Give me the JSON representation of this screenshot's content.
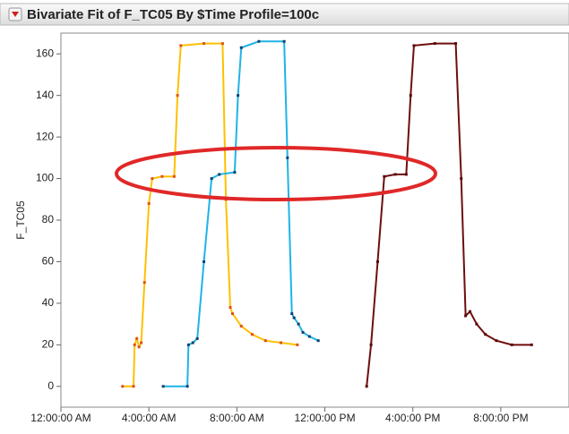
{
  "chart_data": {
    "type": "line",
    "title": "Bivariate Fit of F_TC05 By $Time Profile=100c",
    "y_label": "F_TC05",
    "xlim": [
      0,
      23.1
    ],
    "ylim": [
      -10,
      170
    ],
    "xticks": [
      {
        "value": 0,
        "label": "12:00:00 AM"
      },
      {
        "value": 4,
        "label": "4:00:00 AM"
      },
      {
        "value": 8,
        "label": "8:00:00 AM"
      },
      {
        "value": 12,
        "label": "12:00:00 PM"
      },
      {
        "value": 16,
        "label": "4:00:00 PM"
      },
      {
        "value": 20,
        "label": "8:00:00 PM"
      }
    ],
    "yticks": [
      0,
      20,
      40,
      60,
      80,
      100,
      120,
      140,
      160
    ],
    "series": [
      {
        "color": "#ffc000",
        "marker_color": "#e0501a",
        "x": [
          2.8,
          3.3,
          3.35,
          3.45,
          3.55,
          3.65,
          3.8,
          4.0,
          4.15,
          4.6,
          5.15,
          5.3,
          5.45,
          6.5,
          7.35,
          7.5,
          7.7,
          7.8,
          8.2,
          8.7,
          9.3,
          10.0,
          10.75
        ],
        "values": [
          0,
          0,
          20,
          23,
          19,
          21,
          50,
          88,
          100,
          101,
          101,
          140,
          164,
          165,
          165,
          90,
          38,
          35,
          29,
          25,
          22,
          21,
          20
        ]
      },
      {
        "color": "#1eb4e6",
        "marker_color": "#10406e",
        "x": [
          4.65,
          5.75,
          5.8,
          6.0,
          6.2,
          6.5,
          6.85,
          7.2,
          7.9,
          8.05,
          8.2,
          9.0,
          10.15,
          10.3,
          10.5,
          10.6,
          10.8,
          11.0,
          11.3,
          11.7
        ],
        "values": [
          0,
          0,
          20,
          21,
          23,
          60,
          100,
          102,
          103,
          140,
          163,
          166,
          166,
          110,
          35,
          33,
          30,
          26,
          24,
          22
        ]
      },
      {
        "color": "#6e0e0e",
        "marker_color": "#5a0808",
        "x": [
          13.9,
          14.1,
          14.4,
          14.7,
          15.2,
          15.7,
          15.9,
          16.05,
          17.0,
          17.95,
          18.2,
          18.4,
          18.6,
          18.9,
          19.3,
          19.8,
          20.5,
          21.4
        ],
        "values": [
          0,
          20,
          60,
          101,
          102,
          102,
          140,
          164,
          165,
          165,
          100,
          34,
          36,
          30,
          25,
          22,
          20,
          20
        ]
      }
    ]
  }
}
